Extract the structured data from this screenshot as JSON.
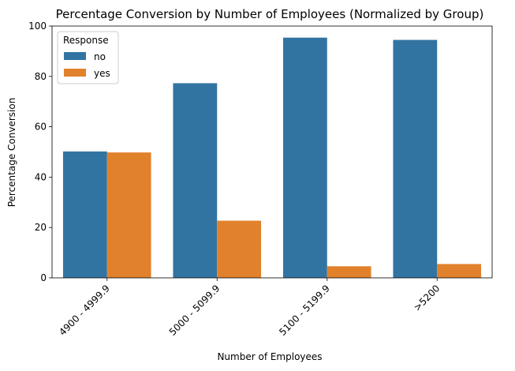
{
  "chart_data": {
    "type": "bar",
    "title": "Percentage Conversion by Number of Employees (Normalized by Group)",
    "xlabel": "Number of Employees",
    "ylabel": "Percentage Conversion",
    "categories": [
      "4900 - 4999.9",
      "5000 - 5099.9",
      "5100 - 5199.9",
      ">5200"
    ],
    "series": [
      {
        "name": "no",
        "values": [
          50.2,
          77.3,
          95.4,
          94.5
        ],
        "color": "#3274a1"
      },
      {
        "name": "yes",
        "values": [
          49.8,
          22.7,
          4.6,
          5.5
        ],
        "color": "#e1812c"
      }
    ],
    "ylim": [
      0,
      100
    ],
    "yticks": [
      0,
      20,
      40,
      60,
      80,
      100
    ],
    "legend": {
      "title": "Response",
      "placement": "top-left"
    },
    "grid": false
  }
}
